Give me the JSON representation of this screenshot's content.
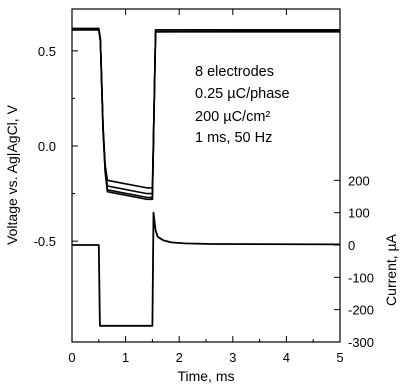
{
  "chart_data": {
    "type": "line",
    "xlabel": "Time, ms",
    "ylabel_left": "Voltage vs. Ag|AgCl, V",
    "ylabel_right": "Current, µA",
    "x_ticks": [
      "0",
      "1",
      "2",
      "3",
      "4",
      "5"
    ],
    "y_left_ticks": [
      "0.5",
      "0.0",
      "-0.5"
    ],
    "y_right_ticks": [
      "200",
      "100",
      "0",
      "-100",
      "-200",
      "-300"
    ],
    "xlim": [
      0,
      5
    ],
    "ylim_left": [
      -1.03,
      0.72
    ],
    "ylim_right": [
      -300,
      300
    ],
    "annotation_lines": [
      "8 electrodes",
      "0.25 µC/phase",
      "200 µC/cm²",
      "1 ms, 50 Hz"
    ],
    "voltage_traces": [
      {
        "values": [
          [
            0,
            0.615
          ],
          [
            0.5,
            0.615
          ],
          [
            0.53,
            0.56
          ],
          [
            0.58,
            0.1
          ],
          [
            0.62,
            -0.1
          ],
          [
            0.66,
            -0.18
          ],
          [
            1.4,
            -0.22
          ],
          [
            1.5,
            -0.22
          ],
          [
            1.56,
            0.61
          ],
          [
            5,
            0.61
          ]
        ]
      },
      {
        "values": [
          [
            0,
            0.61
          ],
          [
            0.5,
            0.61
          ],
          [
            0.53,
            0.55
          ],
          [
            0.58,
            0.08
          ],
          [
            0.62,
            -0.12
          ],
          [
            0.66,
            -0.21
          ],
          [
            1.4,
            -0.25
          ],
          [
            1.5,
            -0.25
          ],
          [
            1.56,
            0.6
          ],
          [
            5,
            0.6
          ]
        ]
      },
      {
        "values": [
          [
            0,
            0.618
          ],
          [
            0.5,
            0.618
          ],
          [
            0.53,
            0.56
          ],
          [
            0.58,
            0.09
          ],
          [
            0.62,
            -0.13
          ],
          [
            0.66,
            -0.23
          ],
          [
            1.4,
            -0.27
          ],
          [
            1.5,
            -0.27
          ],
          [
            1.56,
            0.61
          ],
          [
            5,
            0.61
          ]
        ]
      },
      {
        "values": [
          [
            0,
            0.612
          ],
          [
            0.5,
            0.612
          ],
          [
            0.53,
            0.55
          ],
          [
            0.58,
            0.07
          ],
          [
            0.62,
            -0.14
          ],
          [
            0.66,
            -0.24
          ],
          [
            1.4,
            -0.28
          ],
          [
            1.5,
            -0.28
          ],
          [
            1.56,
            0.6
          ],
          [
            5,
            0.605
          ]
        ]
      }
    ],
    "current_trace": {
      "values": [
        [
          0,
          0
        ],
        [
          0.5,
          0
        ],
        [
          0.52,
          -250
        ],
        [
          1.5,
          -250
        ],
        [
          1.52,
          100
        ],
        [
          1.56,
          45
        ],
        [
          1.6,
          25
        ],
        [
          1.7,
          15
        ],
        [
          1.85,
          8
        ],
        [
          2.1,
          5
        ],
        [
          2.6,
          3
        ],
        [
          5,
          2
        ]
      ]
    }
  }
}
